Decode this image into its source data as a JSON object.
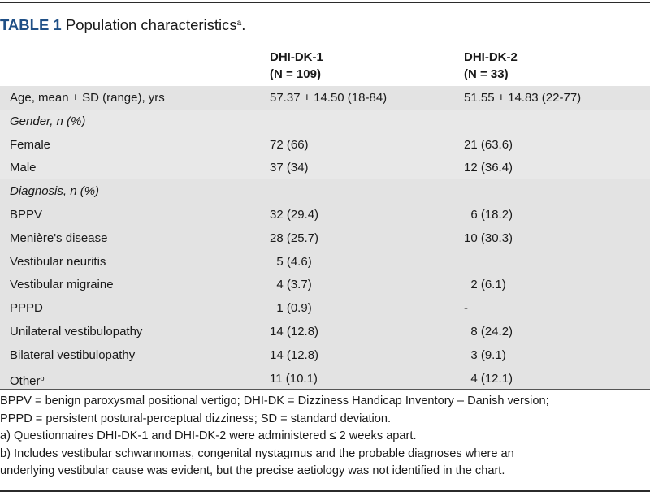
{
  "caption": {
    "label": "TABLE 1",
    "title": "Population characteristics",
    "sup": "a",
    "end": "."
  },
  "columns": [
    {
      "line1": "DHI-DK-1",
      "line2": "(N = 109)"
    },
    {
      "line1": "DHI-DK-2",
      "line2": "(N = 33)"
    }
  ],
  "rows": [
    {
      "label": "Age, mean ± SD (range), yrs",
      "c1": "57.37 ± 14.50 (18-84)",
      "c2": "51.55 ± 14.83 (22-77)"
    },
    {
      "label": "Gender, n (%)",
      "c1": "",
      "c2": ""
    },
    {
      "label": "Female",
      "c1": "72 (66)",
      "c2": "21 (63.6)"
    },
    {
      "label": "Male",
      "c1": "37 (34)",
      "c2": "12 (36.4)"
    },
    {
      "label": "Diagnosis, n (%)",
      "c1": "",
      "c2": ""
    },
    {
      "label": "BPPV",
      "c1": "32 (29.4)",
      "c2": "  6 (18.2)"
    },
    {
      "label": "Menière's disease",
      "c1": "28 (25.7)",
      "c2": "10 (30.3)"
    },
    {
      "label": "Vestibular neuritis",
      "c1": "  5 (4.6)",
      "c2": ""
    },
    {
      "label": "Vestibular migraine",
      "c1": "  4 (3.7)",
      "c2": "  2 (6.1)"
    },
    {
      "label": "PPPD",
      "c1": "  1 (0.9)",
      "c2": "-"
    },
    {
      "label": "Unilateral vestibulopathy",
      "c1": "14 (12.8)",
      "c2": "  8 (24.2)"
    },
    {
      "label": "Bilateral vestibulopathy",
      "c1": "14 (12.8)",
      "c2": "  3 (9.1)"
    },
    {
      "label": "Other",
      "sup": "b",
      "c1": "11 (10.1)",
      "c2": "  4 (12.1)"
    }
  ],
  "footnotes": [
    "BPPV = benign paroxysmal positional vertigo; DHI-DK = Dizziness Handicap Inventory – Danish version;",
    "PPPD = persistent postural-perceptual dizziness; SD = standard deviation.",
    "a) Questionnaires DHI-DK-1 and DHI-DK-2 were administered ≤ 2 weeks apart.",
    "b) Includes vestibular schwannomas, congenital nystagmus and the probable diagnoses where an",
    "underlying vestibular cause was evident, but the precise aetiology was not identified in the chart."
  ]
}
